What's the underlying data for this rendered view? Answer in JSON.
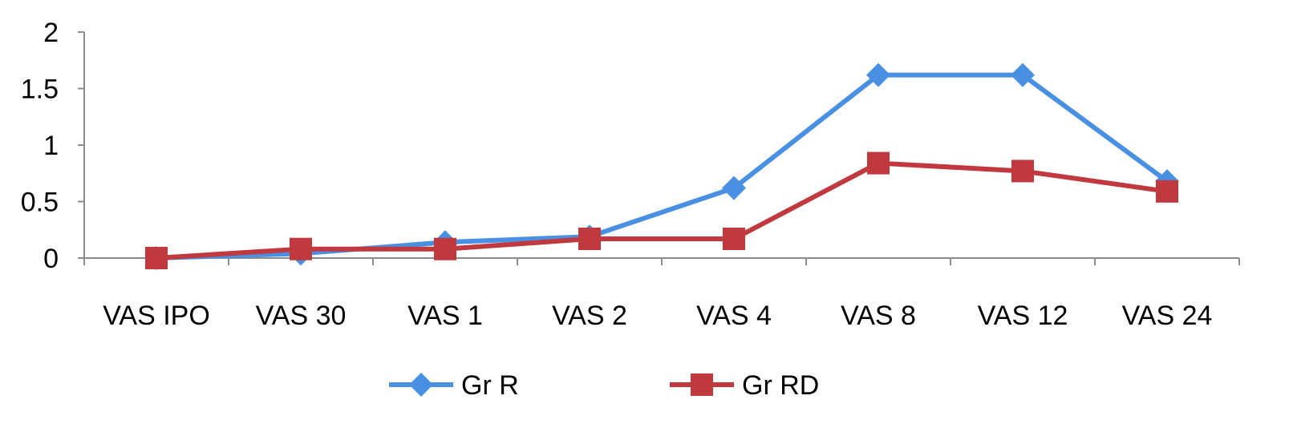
{
  "chart_data": {
    "type": "line",
    "categories": [
      "VAS IPO",
      "VAS 30",
      "VAS 1",
      "VAS 2",
      "VAS 4",
      "VAS 8",
      "VAS 12",
      "VAS 24"
    ],
    "series": [
      {
        "name": "Gr R",
        "color": "#4a90e2",
        "marker": "diamond",
        "values": [
          0,
          0.04,
          0.14,
          0.19,
          0.62,
          1.62,
          1.62,
          0.68
        ]
      },
      {
        "name": "Gr RD",
        "color": "#c0393f",
        "marker": "square",
        "values": [
          0,
          0.08,
          0.08,
          0.17,
          0.17,
          0.84,
          0.77,
          0.59
        ]
      }
    ],
    "y_ticks": [
      "0",
      "0.5",
      "1",
      "1.5",
      "2"
    ],
    "y_tick_values": [
      0,
      0.5,
      1,
      1.5,
      2
    ],
    "ylim": [
      0,
      2
    ],
    "grid": false,
    "legend_position": "bottom"
  }
}
